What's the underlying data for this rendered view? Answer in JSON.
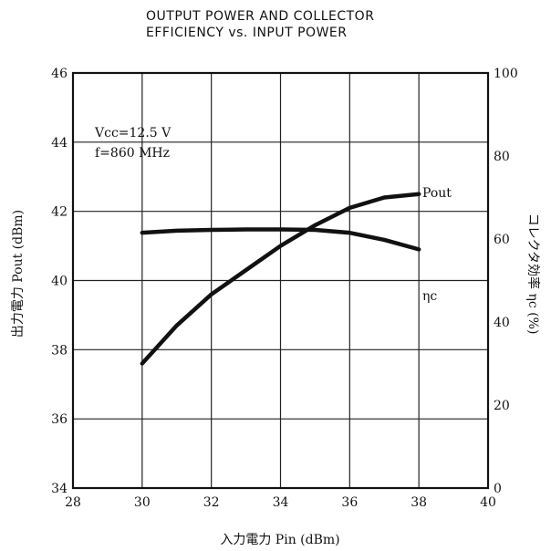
{
  "chart_data": {
    "type": "line",
    "title": "OUTPUT POWER AND COLLECTOR EFFICIENCY vs. INPUT POWER",
    "title_lines": [
      "OUTPUT POWER AND COLLECTOR",
      "EFFICIENCY vs. INPUT POWER"
    ],
    "conditions": [
      "Vcc=12.5 V",
      "f=860 MHz"
    ],
    "xlabel": "入力電力 Pin (dBm)",
    "ylabel_left": "出力電力 Pout (dBm)",
    "ylabel_right": "コレクタ効率 ηc (%)",
    "xlim": [
      28,
      40
    ],
    "ylim_left": [
      34,
      46
    ],
    "ylim_right": [
      0,
      100
    ],
    "x_ticks": [
      28,
      30,
      32,
      34,
      36,
      38,
      40
    ],
    "y_ticks_left": [
      34,
      36,
      38,
      40,
      42,
      44,
      46
    ],
    "y_ticks_right": [
      0,
      20,
      40,
      60,
      80,
      100
    ],
    "grid": true,
    "series": [
      {
        "name": "Pout",
        "axis": "left",
        "x": [
          30,
          31,
          32,
          33,
          34,
          35,
          36,
          37,
          38
        ],
        "y": [
          37.6,
          38.7,
          39.6,
          40.3,
          41.0,
          41.6,
          42.1,
          42.4,
          42.5
        ]
      },
      {
        "name": "ηc",
        "axis": "right",
        "x": [
          30,
          31,
          32,
          33,
          34,
          35,
          36,
          37,
          38
        ],
        "y": [
          61.5,
          62.0,
          62.2,
          62.3,
          62.3,
          62.2,
          61.5,
          59.8,
          57.5
        ]
      }
    ]
  }
}
